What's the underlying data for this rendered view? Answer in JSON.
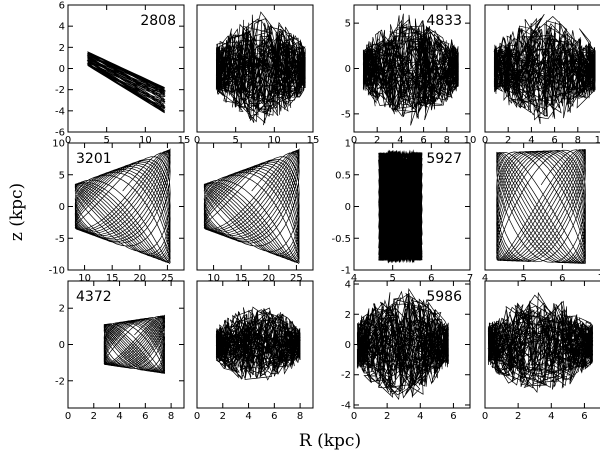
{
  "figure": {
    "xlabel": "R (kpc)",
    "ylabel": "z (kpc)"
  },
  "chart_data": [
    {
      "type": "line",
      "label": "2808",
      "xlim": [
        0,
        15
      ],
      "ylim": [
        -6,
        6
      ],
      "xticks": [
        "0",
        "5",
        "10",
        "15"
      ],
      "yticks": [
        "-6",
        "-4",
        "-2",
        "0",
        "2",
        "4",
        "6"
      ],
      "orbit": {
        "style": "band",
        "R_range": [
          2.5,
          12.5
        ],
        "z_start": [
          0.3,
          1.6
        ],
        "z_end": [
          -4.2,
          -1.8
        ]
      }
    },
    {
      "type": "line",
      "label": "",
      "xlim": [
        0,
        15
      ],
      "ylim": [
        -6,
        6
      ],
      "xticks": [
        "0",
        "5",
        "10",
        "15"
      ],
      "yticks": [],
      "orbit": {
        "style": "chaotic",
        "R_range": [
          2.5,
          14
        ],
        "z_range": [
          -5.5,
          5.5
        ]
      }
    },
    {
      "type": "line",
      "label": "4833",
      "xlim": [
        0,
        10
      ],
      "ylim": [
        -7,
        7
      ],
      "xticks": [
        "0",
        "2",
        "4",
        "6",
        "8",
        "10"
      ],
      "yticks": [
        "-5",
        "0",
        "5"
      ],
      "orbit": {
        "style": "chaotic",
        "R_range": [
          0.8,
          9
        ],
        "z_range": [
          -6.5,
          6
        ]
      }
    },
    {
      "type": "line",
      "label": "",
      "xlim": [
        0,
        10
      ],
      "ylim": [
        -7,
        7
      ],
      "xticks": [
        "0",
        "2",
        "4",
        "6",
        "8",
        "10"
      ],
      "yticks": [],
      "orbit": {
        "style": "chaotic",
        "R_range": [
          0.8,
          9.5
        ],
        "z_range": [
          -6.5,
          6
        ]
      }
    },
    {
      "type": "line",
      "label": "3201",
      "xlim": [
        7,
        28
      ],
      "ylim": [
        -10,
        10
      ],
      "xticks": [
        "10",
        "15",
        "20",
        "25"
      ],
      "yticks": [
        "-10",
        "-5",
        "0",
        "5",
        "10"
      ],
      "orbit": {
        "style": "box",
        "R_range": [
          8.3,
          25.5
        ],
        "z_inner": 3.5,
        "z_outer": 9
      }
    },
    {
      "type": "line",
      "label": "",
      "xlim": [
        7,
        28
      ],
      "ylim": [
        -10,
        10
      ],
      "xticks": [
        "10",
        "15",
        "20",
        "25"
      ],
      "yticks": [],
      "orbit": {
        "style": "box",
        "R_range": [
          8.3,
          25.5
        ],
        "z_inner": 3.5,
        "z_outer": 9
      }
    },
    {
      "type": "line",
      "label": "5927",
      "xlim": [
        4,
        7
      ],
      "ylim": [
        -1,
        1
      ],
      "xticks": [
        "4",
        "5",
        "6",
        "7"
      ],
      "yticks": [
        "-1",
        "-0.5",
        "0",
        "0.5",
        "1"
      ],
      "orbit": {
        "style": "filled",
        "R_range": [
          4.65,
          5.75
        ],
        "z_range": [
          -0.85,
          0.85
        ]
      }
    },
    {
      "type": "line",
      "label": "",
      "xlim": [
        4,
        7
      ],
      "ylim": [
        -1,
        1
      ],
      "xticks": [
        "4",
        "5",
        "6",
        "7"
      ],
      "yticks": [],
      "orbit": {
        "style": "box",
        "R_range": [
          4.3,
          6.6
        ],
        "z_inner": 0.85,
        "z_outer": 0.9
      }
    },
    {
      "type": "line",
      "label": "4372",
      "xlim": [
        0,
        9
      ],
      "ylim": [
        -3.5,
        3.5
      ],
      "xticks": [
        "0",
        "2",
        "4",
        "6",
        "8"
      ],
      "yticks": [
        "-2",
        "0",
        "2"
      ],
      "orbit": {
        "style": "box",
        "R_range": [
          2.8,
          7.5
        ],
        "z_inner": 1.1,
        "z_outer": 1.6
      }
    },
    {
      "type": "line",
      "label": "",
      "xlim": [
        0,
        9
      ],
      "ylim": [
        -3.5,
        3.5
      ],
      "xticks": [
        "0",
        "2",
        "4",
        "6",
        "8"
      ],
      "yticks": [],
      "orbit": {
        "style": "chaotic",
        "R_range": [
          1.5,
          8
        ],
        "z_range": [
          -2.3,
          2.3
        ]
      }
    },
    {
      "type": "line",
      "label": "5986",
      "xlim": [
        0,
        7
      ],
      "ylim": [
        -4.2,
        4.2
      ],
      "xticks": [
        "0",
        "2",
        "4",
        "6"
      ],
      "yticks": [
        "-4",
        "-2",
        "0",
        "2",
        "4"
      ],
      "orbit": {
        "style": "chaotic",
        "R_range": [
          0.2,
          5.7
        ],
        "z_range": [
          -3.9,
          3.9
        ]
      }
    },
    {
      "type": "line",
      "label": "",
      "xlim": [
        0,
        7
      ],
      "ylim": [
        -4.2,
        4.2
      ],
      "xticks": [
        "0",
        "2",
        "4",
        "6"
      ],
      "yticks": [],
      "orbit": {
        "style": "chaotic",
        "R_range": [
          0.2,
          6.5
        ],
        "z_range": [
          -3.5,
          3.5
        ]
      }
    }
  ]
}
